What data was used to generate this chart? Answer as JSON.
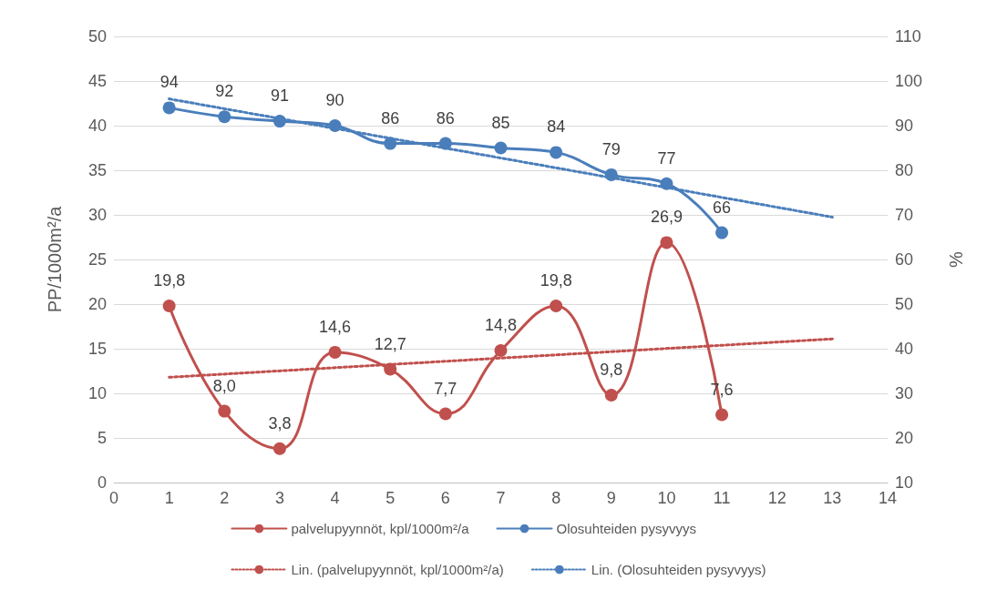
{
  "chart_data": {
    "type": "line",
    "ylabel": "PP/1000m²/a",
    "y2label": "%",
    "xlim": [
      0,
      14
    ],
    "xticks": [
      0,
      1,
      2,
      3,
      4,
      5,
      6,
      7,
      8,
      9,
      10,
      11,
      12,
      13,
      14
    ],
    "ylim": [
      0,
      50
    ],
    "yticks": [
      0,
      5,
      10,
      15,
      20,
      25,
      30,
      35,
      40,
      45,
      50
    ],
    "y2lim": [
      10,
      110
    ],
    "y2ticks": [
      10,
      20,
      30,
      40,
      50,
      60,
      70,
      80,
      90,
      100,
      110
    ],
    "grid": "y",
    "legend": "bottom",
    "series": [
      {
        "name": "palvelupyynnöt, kpl/1000m²/a",
        "color": "#c0504d",
        "marker": "circle",
        "line_style": "solid",
        "x": [
          1,
          2,
          3,
          4,
          5,
          6,
          7,
          8,
          9,
          10,
          11
        ],
        "values": [
          19.8,
          8.0,
          3.8,
          14.6,
          12.7,
          7.7,
          14.8,
          19.8,
          9.8,
          26.9,
          7.6
        ],
        "value_labels": [
          "19,8",
          "8,0",
          "3,8",
          "14,6",
          "12,7",
          "7,7",
          "14,8",
          "19,8",
          "9,8",
          "26,9",
          "7,6"
        ]
      },
      {
        "name": "Olosuhteiden pysyvyys",
        "color": "#4a7ebb",
        "marker": "circle",
        "line_style": "solid",
        "axis": "y2",
        "x": [
          1,
          2,
          3,
          4,
          5,
          6,
          7,
          8,
          9,
          10,
          11
        ],
        "values": [
          94,
          92,
          91,
          90,
          86,
          86,
          85,
          84,
          79,
          77,
          66
        ],
        "value_labels": [
          "94",
          "92",
          "91",
          "90",
          "86",
          "86",
          "85",
          "84",
          "79",
          "77",
          "66"
        ]
      },
      {
        "name": "Lin. (palvelupyynnöt, kpl/1000m²/a)",
        "color": "#c0504d",
        "marker": "none",
        "line_style": "dotted",
        "x": [
          1,
          13
        ],
        "values": [
          11.8,
          16.1
        ]
      },
      {
        "name": "Lin. (Olosuhteiden pysyvyys)",
        "color": "#4a7ebb",
        "marker": "none",
        "line_style": "dotted",
        "axis": "y2",
        "x": [
          1,
          13
        ],
        "values": [
          96,
          69.5
        ]
      }
    ]
  }
}
